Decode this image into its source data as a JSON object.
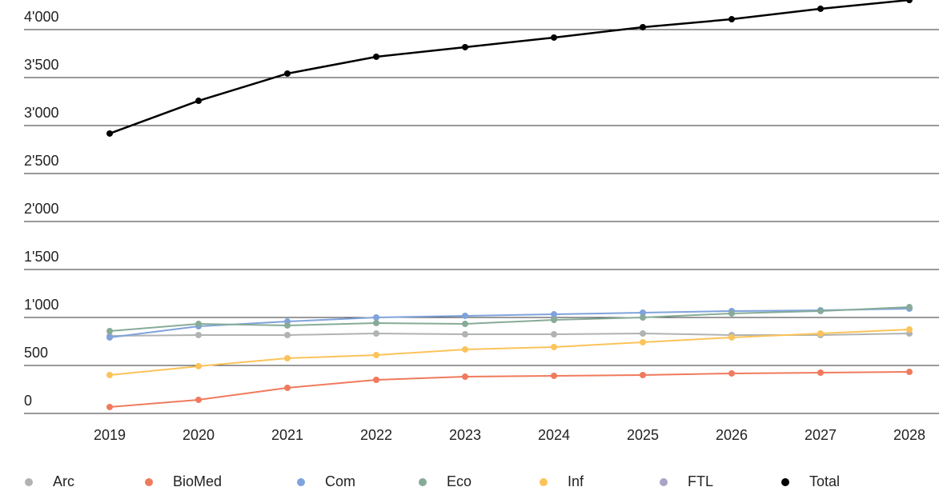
{
  "chart_data": {
    "type": "line",
    "categories": [
      "2019",
      "2020",
      "2021",
      "2022",
      "2023",
      "2024",
      "2025",
      "2026",
      "2027",
      "2028"
    ],
    "series": [
      {
        "name": "Arc",
        "color": "#b0b3b2",
        "values": [
          808,
          817,
          817,
          833,
          825,
          825,
          833,
          817,
          817,
          833
        ]
      },
      {
        "name": "BioMed",
        "color": "#f07a5c",
        "values": [
          67,
          142,
          267,
          350,
          383,
          392,
          400,
          417,
          425,
          433
        ]
      },
      {
        "name": "Com",
        "color": "#7fa3dc",
        "values": [
          792,
          908,
          958,
          1000,
          1017,
          1033,
          1050,
          1067,
          1075,
          1092
        ]
      },
      {
        "name": "Eco",
        "color": "#87ab98",
        "values": [
          858,
          933,
          917,
          942,
          933,
          975,
          1000,
          1042,
          1067,
          1108
        ]
      },
      {
        "name": "Inf",
        "color": "#fbc35a",
        "values": [
          400,
          492,
          575,
          608,
          667,
          692,
          742,
          792,
          833,
          875
        ]
      },
      {
        "name": "FTL",
        "color": "#a9a5c6",
        "values": [
          null,
          null,
          null,
          null,
          null,
          null,
          null,
          null,
          null,
          null
        ]
      },
      {
        "name": "Total",
        "color": "#000000",
        "values": [
          2917,
          3258,
          3542,
          3717,
          3817,
          3917,
          4025,
          4108,
          4217,
          4308
        ]
      }
    ],
    "ylim": [
      0,
      4300
    ],
    "yticks": [
      0,
      500,
      {
        "value": 1000,
        "label": "1'000"
      },
      {
        "value": 1500,
        "label": "1'500"
      },
      {
        "value": 2000,
        "label": "2'000"
      },
      {
        "value": 2500,
        "label": "2'500"
      },
      {
        "value": 3000,
        "label": "3'000"
      },
      {
        "value": 3500,
        "label": "3'500"
      },
      {
        "value": 4000,
        "label": "4'000"
      }
    ],
    "grid": true,
    "legend": "bottom"
  }
}
